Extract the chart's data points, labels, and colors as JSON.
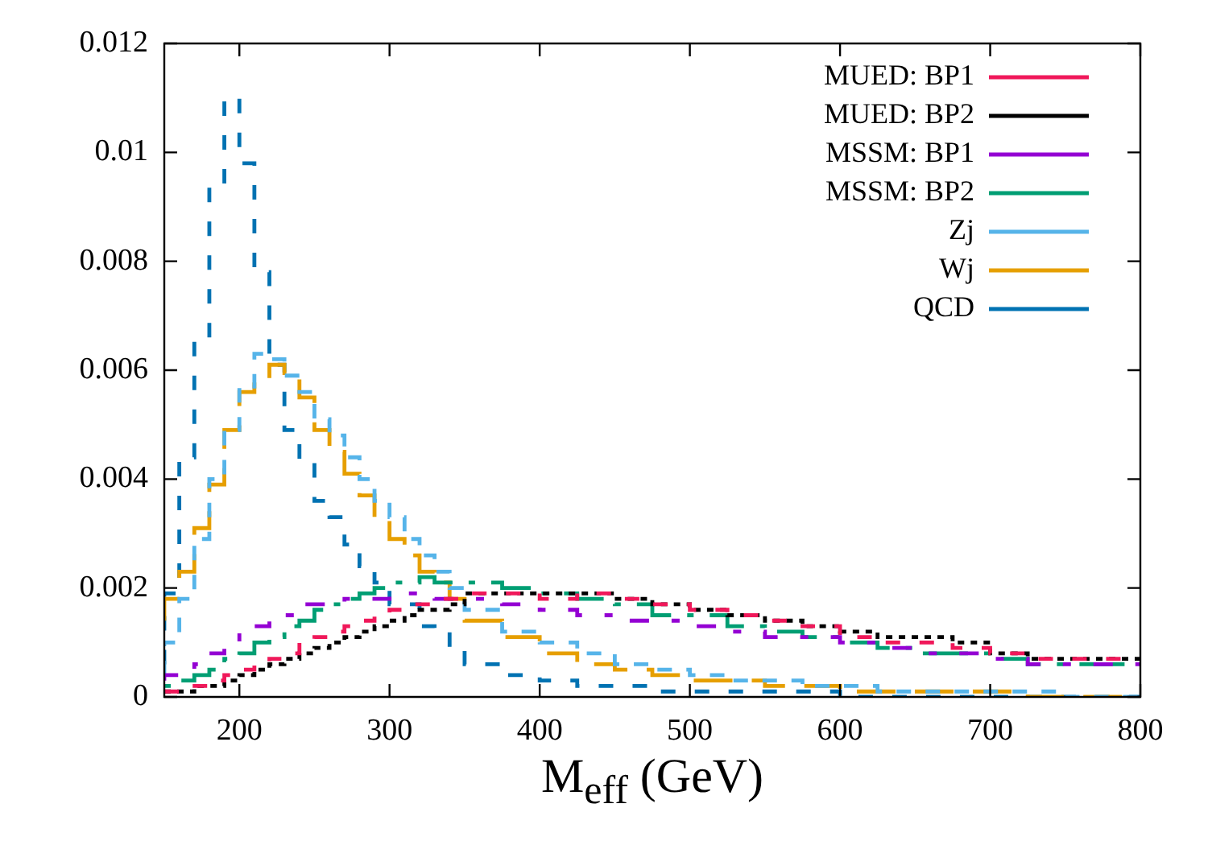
{
  "chart_data": {
    "type": "step",
    "xlabel": "M$_{eff}$ (GeV)",
    "x": [
      150,
      160,
      170,
      180,
      190,
      200,
      210,
      220,
      230,
      240,
      250,
      260,
      270,
      280,
      290,
      300,
      310,
      320,
      330,
      340,
      350,
      375,
      400,
      425,
      450,
      475,
      500,
      525,
      550,
      575,
      600,
      625,
      650,
      675,
      700,
      725,
      750,
      775,
      800
    ],
    "series": [
      {
        "name": "MUED: BP1",
        "color": "#f0185a",
        "line_style": "dashed",
        "values": [
          0.0001,
          0.0001,
          0.0002,
          0.0002,
          0.0003,
          0.0004,
          0.0005,
          0.0006,
          0.0007,
          0.0008,
          0.001,
          0.0011,
          0.0012,
          0.0013,
          0.0014,
          0.0015,
          0.0016,
          0.0017,
          0.0017,
          0.0018,
          0.0018,
          0.0019,
          0.0019,
          0.0018,
          0.0019,
          0.0018,
          0.0017,
          0.0016,
          0.0015,
          0.0014,
          0.0013,
          0.0011,
          0.001,
          0.001,
          0.0009,
          0.0008,
          0.0007,
          0.0007,
          0.0007
        ]
      },
      {
        "name": "MUED: BP2",
        "color": "#000000",
        "line_style": "dotted",
        "values": [
          0.0001,
          0.0001,
          0.0001,
          0.0002,
          0.0002,
          0.0003,
          0.0004,
          0.0005,
          0.0006,
          0.0007,
          0.0008,
          0.0009,
          0.001,
          0.0011,
          0.0012,
          0.0013,
          0.0014,
          0.0015,
          0.0016,
          0.0016,
          0.0017,
          0.0019,
          0.0019,
          0.0019,
          0.0019,
          0.0018,
          0.0017,
          0.0016,
          0.0015,
          0.0014,
          0.0013,
          0.0012,
          0.0011,
          0.0011,
          0.001,
          0.0008,
          0.0007,
          0.0007,
          0.0007
        ]
      },
      {
        "name": "MSSM: BP1",
        "color": "#9400d3",
        "line_style": "dashed",
        "values": [
          0.0003,
          0.0004,
          0.0004,
          0.0006,
          0.0008,
          0.001,
          0.0012,
          0.0013,
          0.0014,
          0.0015,
          0.0017,
          0.0017,
          0.0017,
          0.0018,
          0.0018,
          0.0018,
          0.0019,
          0.0019,
          0.0019,
          0.0018,
          0.0018,
          0.0018,
          0.0017,
          0.0016,
          0.0015,
          0.0014,
          0.0014,
          0.0013,
          0.0012,
          0.0011,
          0.0011,
          0.001,
          0.0009,
          0.0008,
          0.0008,
          0.0007,
          0.0006,
          0.0006,
          0.0006
        ]
      },
      {
        "name": "MSSM: BP2",
        "color": "#009e73",
        "line_style": "dashed",
        "values": [
          0.0002,
          0.0002,
          0.0003,
          0.0004,
          0.0005,
          0.0007,
          0.0008,
          0.001,
          0.0011,
          0.0013,
          0.0014,
          0.0016,
          0.0017,
          0.0018,
          0.0019,
          0.002,
          0.0021,
          0.0021,
          0.0022,
          0.0021,
          0.0021,
          0.0021,
          0.002,
          0.0019,
          0.0018,
          0.0017,
          0.0015,
          0.0015,
          0.0013,
          0.0012,
          0.0011,
          0.001,
          0.0009,
          0.0008,
          0.0008,
          0.0007,
          0.0006,
          0.0006,
          0.0006
        ]
      },
      {
        "name": "Zj",
        "color": "#56b4e9",
        "line_style": "dashed",
        "values": [
          0.0004,
          0.001,
          0.0018,
          0.0029,
          0.004,
          0.0049,
          0.0057,
          0.0063,
          0.0062,
          0.0059,
          0.0056,
          0.0051,
          0.0048,
          0.0044,
          0.004,
          0.0036,
          0.0033,
          0.0029,
          0.0026,
          0.0023,
          0.002,
          0.0016,
          0.0012,
          0.001,
          0.0008,
          0.0006,
          0.0005,
          0.0004,
          0.0003,
          0.0003,
          0.0002,
          0.0002,
          0.0001,
          0.0001,
          0.0001,
          0.0001,
          0.0001,
          0,
          0
        ]
      },
      {
        "name": "Wj",
        "color": "#e69f00",
        "line_style": "dashed",
        "values": [
          0.0014,
          0.0018,
          0.0023,
          0.0031,
          0.0039,
          0.0049,
          0.0056,
          0.0058,
          0.0061,
          0.0059,
          0.0055,
          0.0049,
          0.0045,
          0.0041,
          0.0037,
          0.0033,
          0.0029,
          0.0026,
          0.0023,
          0.0021,
          0.0018,
          0.0014,
          0.0011,
          0.0008,
          0.0006,
          0.0005,
          0.0004,
          0.0003,
          0.0003,
          0.0002,
          0.0002,
          0.0001,
          0.0001,
          0.0001,
          0.0001,
          0.0001,
          0,
          0,
          0
        ]
      },
      {
        "name": "QCD",
        "color": "#0072b2",
        "line_style": "dashed",
        "values": [
          0.0006,
          0.0019,
          0.0044,
          0.0066,
          0.0094,
          0.011,
          0.0098,
          0.0078,
          0.0061,
          0.0049,
          0.0043,
          0.0036,
          0.0033,
          0.0028,
          0.0024,
          0.0021,
          0.0017,
          0.0017,
          0.0013,
          0.0012,
          0.0009,
          0.0006,
          0.0004,
          0.0003,
          0.0002,
          0.0002,
          0.0001,
          0.0001,
          0.0001,
          0.0001,
          0.0001,
          0,
          0,
          0,
          0,
          0,
          0,
          0,
          0
        ]
      }
    ],
    "xlim": [
      150,
      800
    ],
    "xticks": [
      200,
      300,
      400,
      500,
      600,
      700,
      800
    ],
    "ylim": [
      0,
      0.012
    ],
    "yticks": [
      0,
      0.002,
      0.004,
      0.006,
      0.008,
      0.01,
      0.012
    ],
    "legend": "top right",
    "marker": "none"
  }
}
